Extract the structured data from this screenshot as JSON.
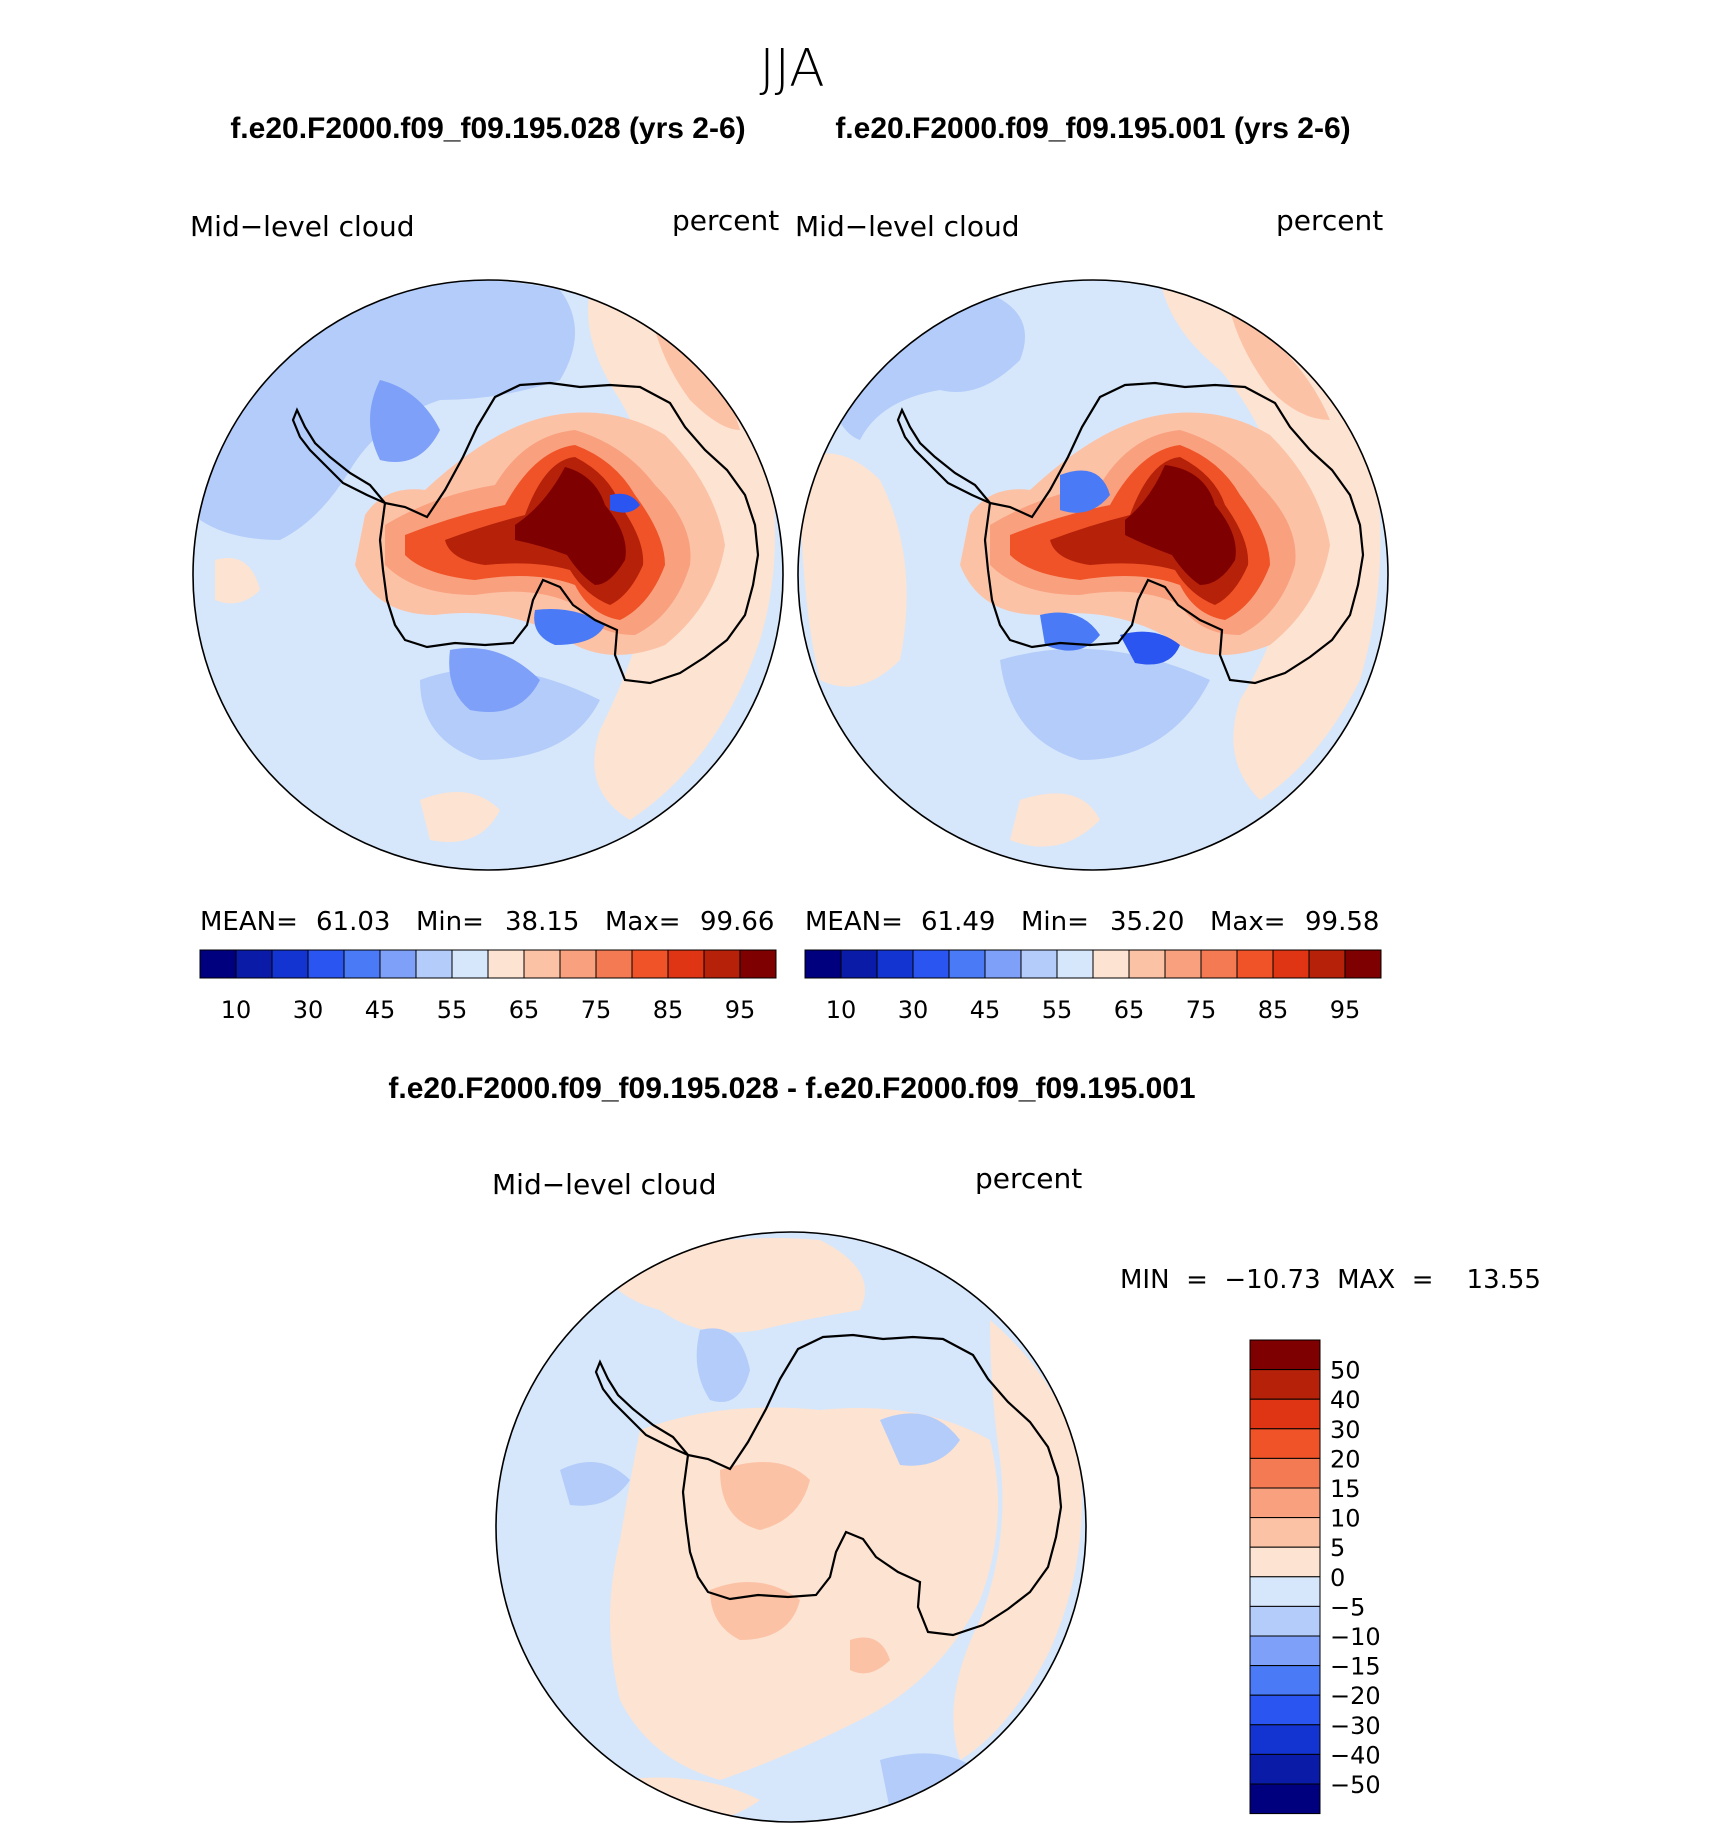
{
  "title": "JJA",
  "panels": [
    {
      "case_title": "f.e20.F2000.f09_f09.195.028 (yrs 2-6)",
      "left_label": "Mid−level cloud",
      "right_label": "percent",
      "stats": {
        "mean_label": "MEAN=",
        "mean": "61.03",
        "min_label": "Min=",
        "min": "38.15",
        "max_label": "Max=",
        "max": "99.66"
      }
    },
    {
      "case_title": "f.e20.F2000.f09_f09.195.001 (yrs 2-6)",
      "left_label": "Mid−level cloud",
      "right_label": "percent",
      "stats": {
        "mean_label": "MEAN=",
        "mean": "61.49",
        "min_label": "Min=",
        "min": "35.20",
        "max_label": "Max=",
        "max": "99.58"
      }
    }
  ],
  "diff_panel": {
    "title": "f.e20.F2000.f09_f09.195.028 - f.e20.F2000.f09_f09.195.001",
    "left_label": "Mid−level cloud",
    "right_label": "percent",
    "minmax_text": "MIN  =  −10.73  MAX  =    13.55"
  },
  "abs_colorbar": {
    "colors": [
      "#00007f",
      "#0a1ba8",
      "#1434d2",
      "#2a55f0",
      "#4a7af5",
      "#7ea0f8",
      "#b3ccfa",
      "#d6e7fb",
      "#fde3d2",
      "#fcc2a6",
      "#f9a07e",
      "#f47a54",
      "#ef5327",
      "#e03514",
      "#b52109",
      "#7f0000"
    ],
    "tick_labels": [
      "10",
      "30",
      "45",
      "55",
      "65",
      "75",
      "85",
      "95"
    ]
  },
  "diff_colorbar": {
    "colors": [
      "#7f0000",
      "#b52109",
      "#e03514",
      "#ef5327",
      "#f47a54",
      "#f9a07e",
      "#fcc2a6",
      "#fde3d2",
      "#d6e7fb",
      "#b3ccfa",
      "#7ea0f8",
      "#4a7af5",
      "#2a55f0",
      "#1434d2",
      "#0a1ba8",
      "#00007f"
    ],
    "tick_labels": [
      "50",
      "40",
      "30",
      "20",
      "15",
      "10",
      "5",
      "0",
      "−5",
      "−10",
      "−15",
      "−20",
      "−30",
      "−40",
      "−50"
    ]
  },
  "map_colors": {
    "bg_light_blue": "#d6e7fb",
    "blue1": "#b3ccfa",
    "blue2": "#7ea0f8",
    "blue3": "#4a7af5",
    "pale_orange": "#fde3d2",
    "orange1": "#fcc2a6",
    "orange2": "#f9a07e",
    "red1": "#f47a54",
    "red2": "#ef5327",
    "red3": "#e03514",
    "red4": "#b52109",
    "dark_red": "#7f0000"
  }
}
